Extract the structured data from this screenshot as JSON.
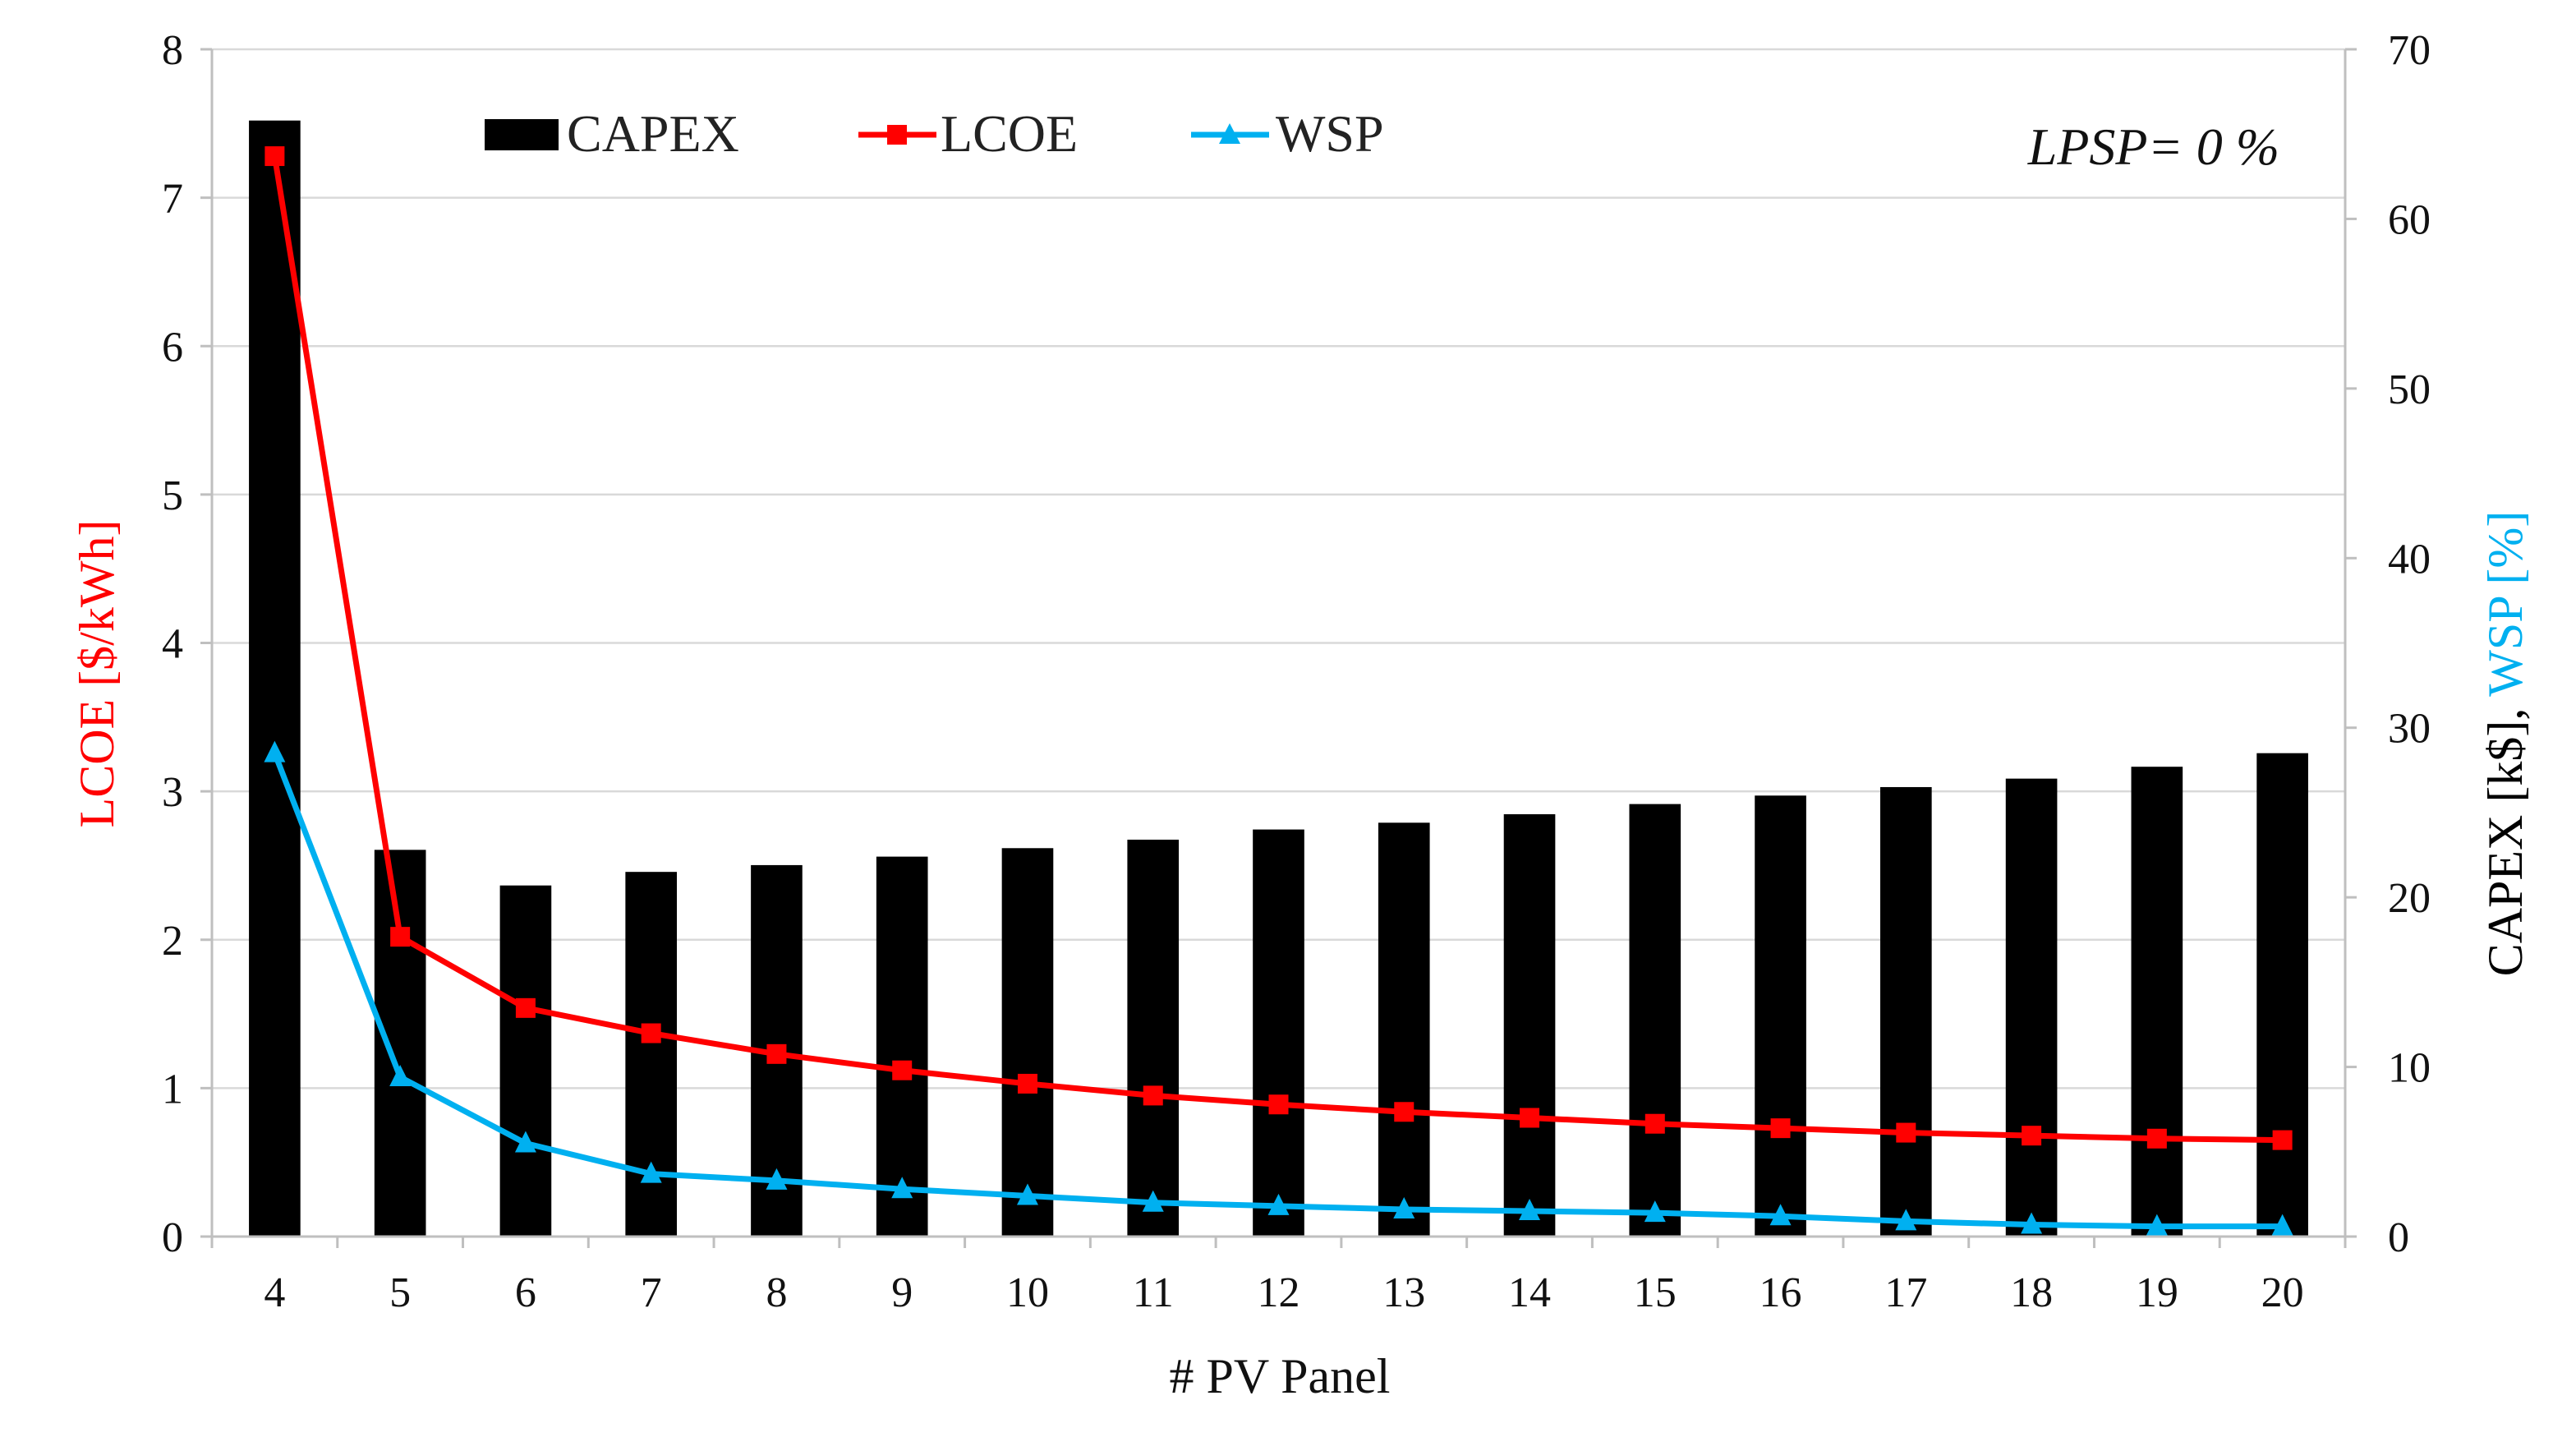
{
  "chart_data": {
    "type": "bar+line",
    "title": "",
    "annotation": "LPSP= 0 %",
    "xlabel": "# PV Panel",
    "categories": [
      "4",
      "5",
      "6",
      "7",
      "8",
      "9",
      "10",
      "11",
      "12",
      "13",
      "14",
      "15",
      "16",
      "17",
      "18",
      "19",
      "20"
    ],
    "series": [
      {
        "name": "CAPEX",
        "type": "bar",
        "axis": "right",
        "color": "#000000",
        "values": [
          65.8,
          22.8,
          20.7,
          21.5,
          21.9,
          22.4,
          22.9,
          23.4,
          24.0,
          24.4,
          24.9,
          25.5,
          26.0,
          26.5,
          27.0,
          27.7,
          28.5
        ]
      },
      {
        "name": "LCOE",
        "type": "line",
        "axis": "left",
        "color": "#ff0000",
        "marker": "square",
        "values": [
          7.28,
          2.02,
          1.54,
          1.37,
          1.23,
          1.12,
          1.03,
          0.95,
          0.89,
          0.84,
          0.8,
          0.76,
          0.73,
          0.7,
          0.68,
          0.66,
          0.65
        ]
      },
      {
        "name": "WSP",
        "type": "line",
        "axis": "right",
        "color": "#00b0f0",
        "marker": "triangle",
        "values": [
          28.5,
          9.4,
          5.5,
          3.7,
          3.3,
          2.8,
          2.4,
          2.0,
          1.8,
          1.6,
          1.5,
          1.4,
          1.2,
          0.9,
          0.7,
          0.6,
          0.6
        ]
      }
    ],
    "y_left": {
      "label": "LCOE [$/kWh]",
      "label_color": "#ff0000",
      "ylim": [
        0,
        8
      ],
      "ticks": [
        "0",
        "1",
        "2",
        "3",
        "4",
        "5",
        "6",
        "7",
        "8"
      ]
    },
    "y_right": {
      "label_part1": "CAPEX [k$], ",
      "label_part1_color": "#000000",
      "label_part2": "WSP [%]",
      "label_part2_color": "#00b0f0",
      "ylim": [
        0,
        70
      ],
      "ticks": [
        "0",
        "10",
        "20",
        "30",
        "40",
        "50",
        "60",
        "70"
      ]
    },
    "grid": true,
    "legend": {
      "placement": "top-left",
      "entries": [
        "CAPEX",
        "LCOE",
        "WSP"
      ]
    }
  }
}
